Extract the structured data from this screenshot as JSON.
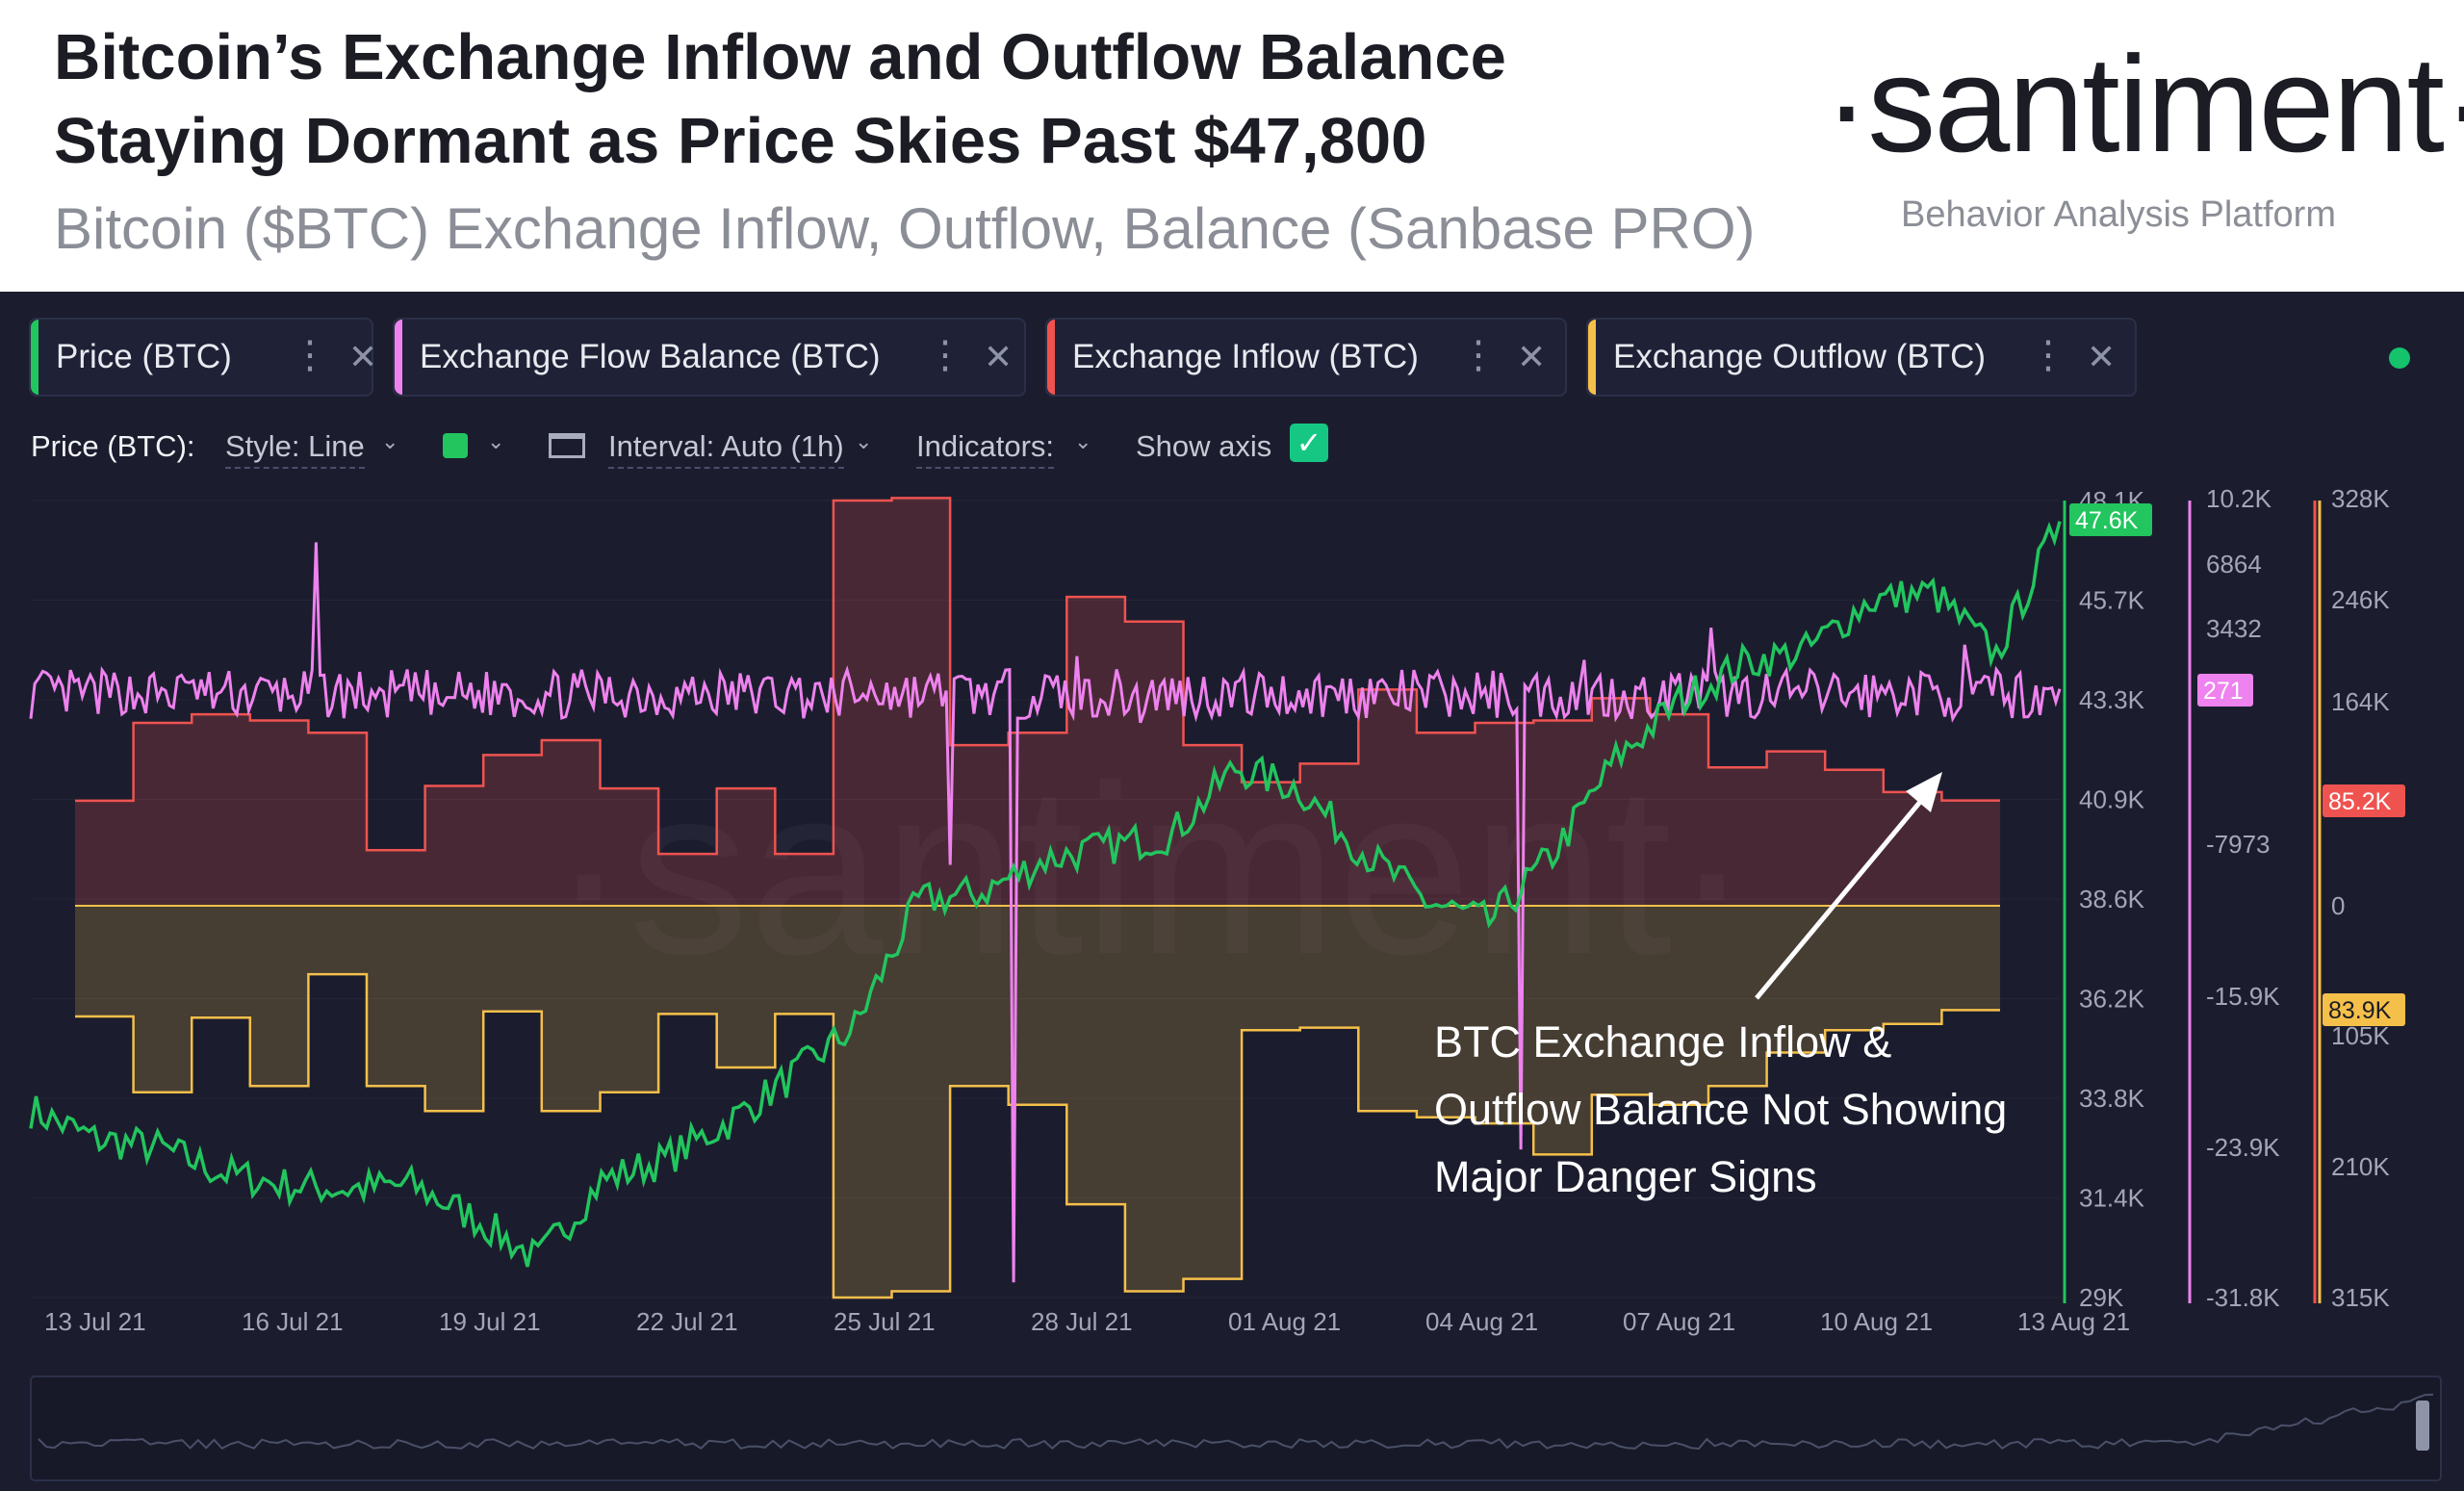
{
  "header": {
    "headline_line1": "Bitcoin’s Exchange Inflow and Outflow Balance",
    "headline_line2": "Staying Dormant as Price Skies Past $47,800",
    "subheadline": "Bitcoin ($BTC) Exchange Inflow, Outflow, Balance (Sanbase PRO)",
    "brand": "·santiment·",
    "tagline": "Behavior Analysis Platform"
  },
  "tabs": [
    {
      "label": "Price (BTC)",
      "color": "#22c55e"
    },
    {
      "label": "Exchange Flow Balance (BTC)",
      "color": "#ee82ee"
    },
    {
      "label": "Exchange Inflow (BTC)",
      "color": "#ef5350"
    },
    {
      "label": "Exchange Outflow (BTC)",
      "color": "#f5c04a"
    }
  ],
  "tab_menu_icon": "vertical-dots-icon",
  "tab_close_icon": "close-icon",
  "settings": {
    "metric_label": "Price (BTC):",
    "style_label": "Style: Line",
    "interval_label": "Interval: Auto (1h)",
    "indicators_label": "Indicators:",
    "show_axis_label": "Show axis",
    "show_axis_checked": true,
    "line_color": "#22c55e"
  },
  "annotation": {
    "lines": [
      "BTC Exchange Inflow &",
      "Outflow Balance Not Showing",
      "Major Danger Signs"
    ]
  },
  "watermark": "·santiment·",
  "chart_data": {
    "type": "line",
    "x_range": [
      "2021-07-12",
      "2021-08-13"
    ],
    "x_ticks": [
      "13 Jul 21",
      "16 Jul 21",
      "19 Jul 21",
      "22 Jul 21",
      "25 Jul 21",
      "28 Jul 21",
      "01 Aug 21",
      "04 Aug 21",
      "07 Aug 21",
      "10 Aug 21",
      "13 Aug 21"
    ],
    "axes": {
      "price": {
        "ticks": [
          "48.1K",
          "45.7K",
          "43.3K",
          "40.9K",
          "38.6K",
          "36.2K",
          "33.8K",
          "31.4K",
          "29K"
        ],
        "range": [
          29000,
          48100
        ],
        "color": "#22c55e",
        "current": "47.6K"
      },
      "flow_balance": {
        "ticks": [
          "10.2K",
          "6864",
          "3432",
          "-7973",
          "-15.9K",
          "-23.9K",
          "-31.8K"
        ],
        "range": [
          -31800,
          10200
        ],
        "color": "#ee82ee",
        "current": "271"
      },
      "inflow_outflow": {
        "ticks": [
          "328K",
          "246K",
          "164K",
          "0",
          "105K",
          "210K",
          "315K"
        ],
        "inflow_color": "#ef5350",
        "outflow_color": "#f5c04a",
        "current_inflow": "85.2K",
        "current_outflow": "83.9K"
      }
    },
    "series": [
      {
        "name": "Price (BTC)",
        "color": "#22c55e",
        "unit": "USD",
        "x": [
          "2021-07-12",
          "2021-07-13",
          "2021-07-14",
          "2021-07-15",
          "2021-07-16",
          "2021-07-17",
          "2021-07-18",
          "2021-07-19",
          "2021-07-20",
          "2021-07-21",
          "2021-07-22",
          "2021-07-23",
          "2021-07-24",
          "2021-07-25",
          "2021-07-26",
          "2021-07-27",
          "2021-07-28",
          "2021-07-29",
          "2021-07-30",
          "2021-07-31",
          "2021-08-01",
          "2021-08-02",
          "2021-08-03",
          "2021-08-04",
          "2021-08-05",
          "2021-08-06",
          "2021-08-07",
          "2021-08-08",
          "2021-08-09",
          "2021-08-10",
          "2021-08-11",
          "2021-08-12",
          "2021-08-13"
        ],
        "values": [
          33500,
          32800,
          32600,
          32000,
          31700,
          31600,
          31700,
          30900,
          29900,
          31800,
          32300,
          33200,
          34300,
          35500,
          38500,
          38700,
          39500,
          39800,
          40100,
          41700,
          41200,
          39700,
          38500,
          38000,
          39600,
          41900,
          43300,
          44200,
          44500,
          45700,
          45900,
          44400,
          47600
        ]
      },
      {
        "name": "Exchange Flow Balance (BTC)",
        "color": "#ee82ee",
        "unit": "BTC",
        "x": [
          "2021-07-12",
          "2021-07-13",
          "2021-07-14",
          "2021-07-15",
          "2021-07-16",
          "2021-07-17",
          "2021-07-18",
          "2021-07-19",
          "2021-07-20",
          "2021-07-21",
          "2021-07-22",
          "2021-07-23",
          "2021-07-24",
          "2021-07-25",
          "2021-07-26",
          "2021-07-27",
          "2021-07-28",
          "2021-07-29",
          "2021-07-30",
          "2021-07-31",
          "2021-08-01",
          "2021-08-02",
          "2021-08-03",
          "2021-08-04",
          "2021-08-05",
          "2021-08-06",
          "2021-08-07",
          "2021-08-08",
          "2021-08-09",
          "2021-08-10",
          "2021-08-11",
          "2021-08-12",
          "2021-08-13"
        ],
        "values": [
          400,
          -900,
          600,
          -300,
          8000,
          300,
          -600,
          500,
          -400,
          700,
          -500,
          300,
          -200,
          600,
          -9000,
          -31000,
          2000,
          -1500,
          900,
          -700,
          400,
          -500,
          300,
          -24000,
          1800,
          -900,
          3500,
          -600,
          800,
          -500,
          2600,
          -1200,
          271
        ]
      },
      {
        "name": "Exchange Inflow (BTC)",
        "color": "#ef5350",
        "unit": "BTC",
        "x": [
          "2021-07-12",
          "2021-07-13",
          "2021-07-14",
          "2021-07-15",
          "2021-07-16",
          "2021-07-17",
          "2021-07-18",
          "2021-07-19",
          "2021-07-20",
          "2021-07-21",
          "2021-07-22",
          "2021-07-23",
          "2021-07-24",
          "2021-07-25",
          "2021-07-26",
          "2021-07-27",
          "2021-07-28",
          "2021-07-29",
          "2021-07-30",
          "2021-07-31",
          "2021-08-01",
          "2021-08-02",
          "2021-08-03",
          "2021-08-04",
          "2021-08-05",
          "2021-08-06",
          "2021-08-07",
          "2021-08-08",
          "2021-08-09",
          "2021-08-10",
          "2021-08-11",
          "2021-08-12",
          "2021-08-13"
        ],
        "values": [
          85000,
          148000,
          155000,
          150000,
          140000,
          45000,
          97000,
          122000,
          134000,
          95000,
          42000,
          95000,
          42000,
          328000,
          330000,
          130000,
          140000,
          250000,
          230000,
          130000,
          100000,
          115000,
          175000,
          140000,
          148000,
          150000,
          168000,
          155000,
          112000,
          125000,
          110000,
          92000,
          85200
        ]
      },
      {
        "name": "Exchange Outflow (BTC)",
        "color": "#f5c04a",
        "unit": "BTC",
        "x": [
          "2021-07-12",
          "2021-07-13",
          "2021-07-14",
          "2021-07-15",
          "2021-07-16",
          "2021-07-17",
          "2021-07-18",
          "2021-07-19",
          "2021-07-20",
          "2021-07-21",
          "2021-07-22",
          "2021-07-23",
          "2021-07-24",
          "2021-07-25",
          "2021-07-26",
          "2021-07-27",
          "2021-07-28",
          "2021-07-29",
          "2021-07-30",
          "2021-07-31",
          "2021-08-01",
          "2021-08-02",
          "2021-08-03",
          "2021-08-04",
          "2021-08-05",
          "2021-08-06",
          "2021-08-07",
          "2021-08-08",
          "2021-08-09",
          "2021-08-10",
          "2021-08-11",
          "2021-08-12",
          "2021-08-13"
        ],
        "values": [
          89000,
          150000,
          90000,
          145000,
          55000,
          145000,
          165000,
          85000,
          165000,
          150000,
          87000,
          130000,
          87000,
          315000,
          310000,
          145000,
          160000,
          240000,
          310000,
          300000,
          100000,
          98000,
          165000,
          170000,
          175000,
          200000,
          152000,
          160000,
          145000,
          118000,
          100000,
          95000,
          83900
        ]
      }
    ]
  }
}
